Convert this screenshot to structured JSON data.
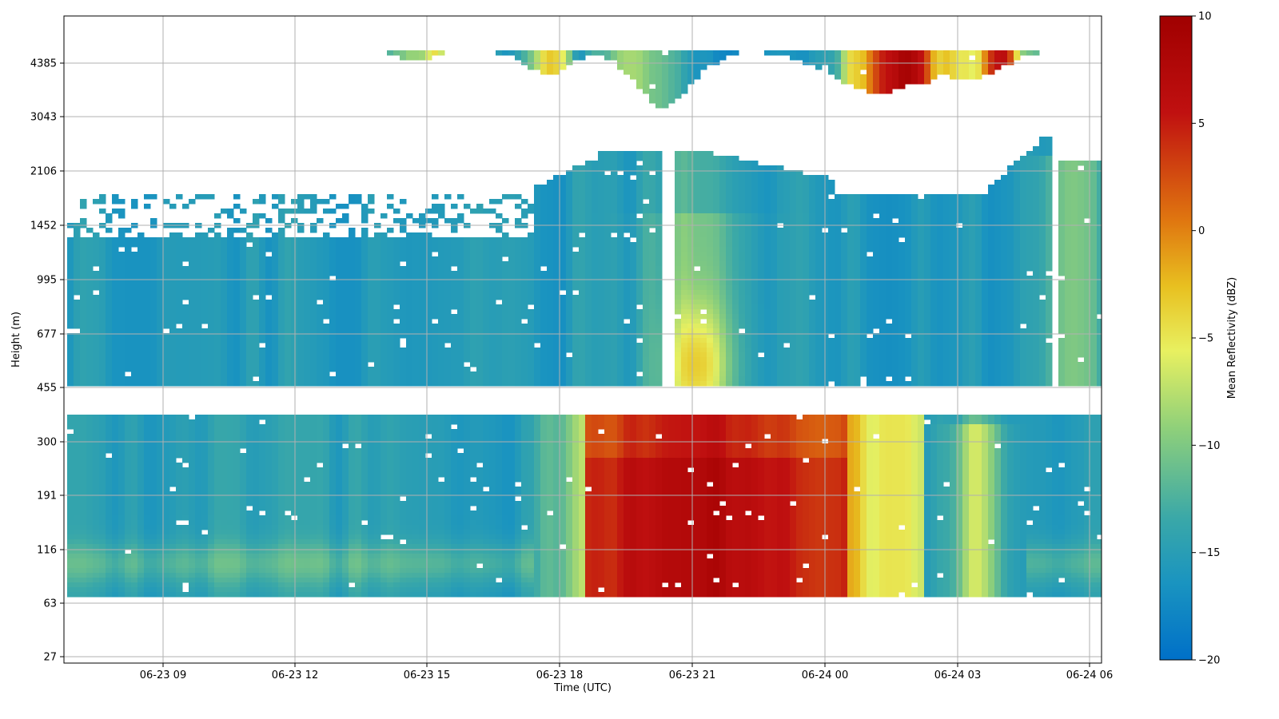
{
  "chart_data": {
    "type": "heatmap",
    "xlabel": "Time (UTC)",
    "ylabel": "Height (m)",
    "x_ticks": [
      "06-23 09",
      "06-23 12",
      "06-23 15",
      "06-23 18",
      "06-23 21",
      "06-24 00",
      "06-24 03",
      "06-24 06"
    ],
    "y_ticks": [
      "27",
      "63",
      "116",
      "191",
      "300",
      "455",
      "677",
      "995",
      "1452",
      "2106",
      "3043",
      "4385"
    ],
    "xlim_hours": [
      6.0,
      30.2
    ],
    "colorbar": {
      "label": "Mean Reflectivity (dBZ)",
      "range": [
        -20,
        10
      ],
      "ticks": [
        "10",
        "5",
        "0",
        "−5",
        "−10",
        "−15",
        "−20"
      ],
      "colormap": [
        "#0070c8",
        "#1a94c0",
        "#3aa8a8",
        "#8fd07a",
        "#e8f060",
        "#e8c020",
        "#e07810",
        "#c01010",
        "#a00000"
      ]
    },
    "grid": true,
    "structure": {
      "upper_band_height_m": [
        3043,
        4385
      ],
      "main_cloud_height_m": [
        300,
        1452
      ],
      "lower_band_height_m": [
        45,
        191
      ],
      "peak_reflectivity_dBZ": 9,
      "peak_time": "06-23 21",
      "background_reflectivity_dBZ": -16
    }
  }
}
